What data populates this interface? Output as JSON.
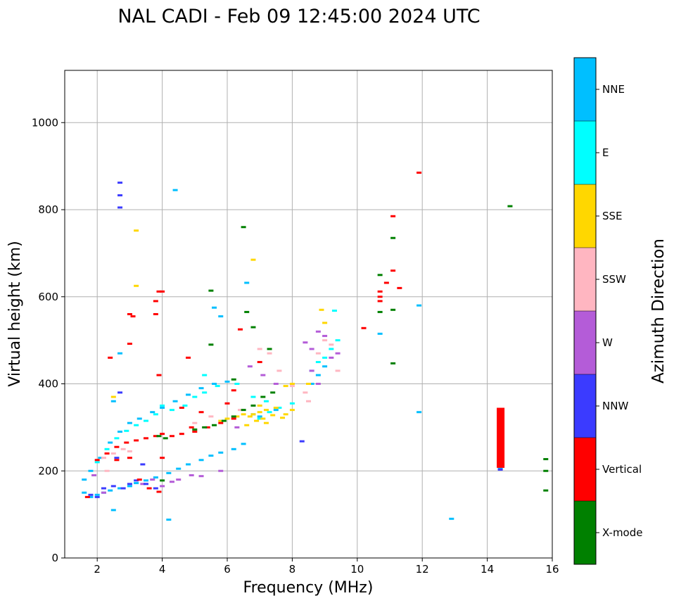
{
  "chart_data": {
    "type": "scatter",
    "title": "NAL CADI - Feb 09 12:45:00 2024 UTC",
    "xlabel": "Frequency (MHz)",
    "ylabel": "Virtual height (km)",
    "xlim": [
      1,
      16
    ],
    "ylim": [
      0,
      1120
    ],
    "xticks": [
      2,
      4,
      6,
      8,
      10,
      12,
      14,
      16
    ],
    "yticks": [
      0,
      200,
      400,
      600,
      800,
      1000
    ],
    "xtick_labels": [
      "2",
      "4",
      "6",
      "8",
      "10",
      "12",
      "14",
      "16"
    ],
    "ytick_labels": [
      "0",
      "200",
      "400",
      "600",
      "800",
      "1000"
    ],
    "grid": true,
    "colorbar": {
      "label": "Azimuth Direction",
      "categories": [
        {
          "name": "X-mode",
          "color": "#008000"
        },
        {
          "name": "Vertical",
          "color": "#ff0000"
        },
        {
          "name": "NNW",
          "color": "#3b3bff"
        },
        {
          "name": "W",
          "color": "#b45cd8"
        },
        {
          "name": "SSW",
          "color": "#ffb6c1"
        },
        {
          "name": "SSE",
          "color": "#ffd700"
        },
        {
          "name": "E",
          "color": "#00ffff"
        },
        {
          "name": "NNE",
          "color": "#00bfff"
        }
      ]
    },
    "series": [
      {
        "name": "NNE",
        "points": [
          [
            1.6,
            150
          ],
          [
            1.8,
            140
          ],
          [
            2.0,
            145
          ],
          [
            2.2,
            150
          ],
          [
            2.4,
            155
          ],
          [
            2.7,
            160
          ],
          [
            3.0,
            165
          ],
          [
            3.2,
            172
          ],
          [
            3.5,
            178
          ],
          [
            3.8,
            185
          ],
          [
            4.2,
            195
          ],
          [
            4.5,
            205
          ],
          [
            4.8,
            215
          ],
          [
            5.2,
            225
          ],
          [
            5.5,
            235
          ],
          [
            5.8,
            242
          ],
          [
            6.2,
            250
          ],
          [
            6.5,
            262
          ],
          [
            1.6,
            180
          ],
          [
            1.8,
            200
          ],
          [
            2.1,
            230
          ],
          [
            2.4,
            265
          ],
          [
            2.7,
            290
          ],
          [
            3.0,
            310
          ],
          [
            3.3,
            320
          ],
          [
            3.7,
            335
          ],
          [
            4.0,
            345
          ],
          [
            4.4,
            360
          ],
          [
            4.8,
            375
          ],
          [
            5.2,
            390
          ],
          [
            5.6,
            400
          ],
          [
            6.0,
            405
          ],
          [
            2.5,
            110
          ],
          [
            2.5,
            360
          ],
          [
            4.2,
            88
          ],
          [
            2.7,
            470
          ],
          [
            5.6,
            575
          ],
          [
            5.8,
            555
          ],
          [
            6.6,
            632
          ],
          [
            4.4,
            845
          ],
          [
            10.7,
            515
          ],
          [
            11.9,
            580
          ],
          [
            11.9,
            335
          ],
          [
            12.9,
            90
          ],
          [
            14.4,
            205
          ],
          [
            9.0,
            440
          ],
          [
            8.8,
            420
          ],
          [
            7.5,
            340
          ],
          [
            7.0,
            325
          ],
          [
            6.8,
            330
          ],
          [
            8.6,
            400
          ]
        ]
      },
      {
        "name": "E",
        "points": [
          [
            2.0,
            220
          ],
          [
            2.3,
            250
          ],
          [
            2.6,
            275
          ],
          [
            2.9,
            292
          ],
          [
            3.2,
            305
          ],
          [
            3.5,
            315
          ],
          [
            3.8,
            330
          ],
          [
            4.0,
            350
          ],
          [
            4.3,
            340
          ],
          [
            4.7,
            350
          ],
          [
            5.0,
            370
          ],
          [
            5.3,
            380
          ],
          [
            5.7,
            395
          ],
          [
            6.3,
            400
          ],
          [
            6.8,
            370
          ],
          [
            7.2,
            360
          ],
          [
            7.6,
            345
          ],
          [
            8.0,
            355
          ],
          [
            8.6,
            430
          ],
          [
            8.8,
            450
          ],
          [
            9.0,
            460
          ],
          [
            9.2,
            480
          ],
          [
            9.4,
            500
          ],
          [
            9.3,
            568
          ],
          [
            5.3,
            420
          ],
          [
            7.0,
            320
          ],
          [
            7.3,
            335
          ]
        ]
      },
      {
        "name": "SSE",
        "points": [
          [
            5.8,
            315
          ],
          [
            6.0,
            320
          ],
          [
            6.3,
            325
          ],
          [
            6.5,
            330
          ],
          [
            6.8,
            330
          ],
          [
            7.0,
            335
          ],
          [
            7.2,
            340
          ],
          [
            7.5,
            345
          ],
          [
            7.8,
            330
          ],
          [
            6.7,
            325
          ],
          [
            6.9,
            315
          ],
          [
            7.1,
            320
          ],
          [
            7.4,
            328
          ],
          [
            7.7,
            322
          ],
          [
            8.0,
            340
          ],
          [
            7.2,
            310
          ],
          [
            6.6,
            305
          ],
          [
            8.9,
            570
          ],
          [
            6.8,
            685
          ],
          [
            3.2,
            752
          ],
          [
            3.2,
            625
          ],
          [
            9.0,
            540
          ],
          [
            8.5,
            400
          ],
          [
            7.0,
            350
          ],
          [
            7.8,
            395
          ],
          [
            8.0,
            400
          ],
          [
            2.5,
            370
          ]
        ]
      },
      {
        "name": "SSW",
        "points": [
          [
            2.2,
            230
          ],
          [
            2.5,
            240
          ],
          [
            2.8,
            250
          ],
          [
            3.0,
            245
          ],
          [
            7.0,
            480
          ],
          [
            7.3,
            470
          ],
          [
            7.6,
            430
          ],
          [
            8.0,
            395
          ],
          [
            8.4,
            380
          ],
          [
            8.5,
            360
          ],
          [
            8.8,
            470
          ],
          [
            9.0,
            500
          ],
          [
            9.2,
            490
          ],
          [
            9.4,
            430
          ],
          [
            5.0,
            310
          ],
          [
            5.5,
            325
          ],
          [
            6.0,
            355
          ],
          [
            6.4,
            340
          ],
          [
            2.3,
            200
          ]
        ]
      },
      {
        "name": "W",
        "points": [
          [
            3.4,
            170
          ],
          [
            3.7,
            180
          ],
          [
            4.0,
            165
          ],
          [
            4.3,
            175
          ],
          [
            4.5,
            180
          ],
          [
            4.9,
            190
          ],
          [
            5.2,
            188
          ],
          [
            5.8,
            200
          ],
          [
            6.3,
            300
          ],
          [
            6.7,
            440
          ],
          [
            7.1,
            420
          ],
          [
            7.5,
            400
          ],
          [
            8.4,
            495
          ],
          [
            8.6,
            480
          ],
          [
            8.8,
            520
          ],
          [
            9.0,
            510
          ],
          [
            9.2,
            460
          ],
          [
            9.4,
            470
          ],
          [
            8.6,
            430
          ],
          [
            8.8,
            400
          ],
          [
            1.9,
            190
          ],
          [
            2.2,
            150
          ]
        ]
      },
      {
        "name": "NNW",
        "points": [
          [
            1.8,
            145
          ],
          [
            2.0,
            140
          ],
          [
            2.2,
            160
          ],
          [
            2.5,
            165
          ],
          [
            2.8,
            160
          ],
          [
            3.0,
            170
          ],
          [
            3.2,
            178
          ],
          [
            3.5,
            170
          ],
          [
            3.8,
            160
          ],
          [
            2.7,
            862
          ],
          [
            2.7,
            833
          ],
          [
            2.7,
            805
          ],
          [
            2.7,
            380
          ],
          [
            8.3,
            268
          ],
          [
            14.4,
            203
          ],
          [
            2.6,
            230
          ],
          [
            3.4,
            215
          ]
        ]
      },
      {
        "name": "Vertical",
        "points": [
          [
            1.7,
            140
          ],
          [
            2.0,
            225
          ],
          [
            2.3,
            240
          ],
          [
            2.6,
            255
          ],
          [
            2.9,
            265
          ],
          [
            3.2,
            270
          ],
          [
            3.5,
            275
          ],
          [
            3.8,
            280
          ],
          [
            4.0,
            285
          ],
          [
            4.3,
            280
          ],
          [
            4.6,
            285
          ],
          [
            5.0,
            290
          ],
          [
            5.4,
            300
          ],
          [
            5.8,
            310
          ],
          [
            6.2,
            320
          ],
          [
            2.6,
            225
          ],
          [
            3.0,
            230
          ],
          [
            3.3,
            180
          ],
          [
            3.6,
            160
          ],
          [
            3.9,
            152
          ],
          [
            4.0,
            230
          ],
          [
            2.4,
            460
          ],
          [
            3.0,
            560
          ],
          [
            3.1,
            555
          ],
          [
            3.0,
            492
          ],
          [
            3.8,
            590
          ],
          [
            3.8,
            560
          ],
          [
            3.9,
            612
          ],
          [
            4.0,
            612
          ],
          [
            3.9,
            420
          ],
          [
            4.8,
            460
          ],
          [
            4.6,
            345
          ],
          [
            4.9,
            300
          ],
          [
            5.2,
            335
          ],
          [
            6.0,
            355
          ],
          [
            6.4,
            525
          ],
          [
            7.0,
            450
          ],
          [
            10.7,
            600
          ],
          [
            10.7,
            590
          ],
          [
            10.7,
            612
          ],
          [
            10.9,
            632
          ],
          [
            11.1,
            785
          ],
          [
            11.1,
            660
          ],
          [
            11.3,
            620
          ],
          [
            11.9,
            885
          ],
          [
            10.2,
            528
          ],
          [
            6.2,
            385
          ]
        ]
      },
      {
        "name": "X-mode",
        "points": [
          [
            5.0,
            295
          ],
          [
            5.3,
            300
          ],
          [
            5.6,
            305
          ],
          [
            5.9,
            315
          ],
          [
            6.2,
            325
          ],
          [
            6.5,
            340
          ],
          [
            6.8,
            350
          ],
          [
            7.1,
            370
          ],
          [
            7.4,
            380
          ],
          [
            3.9,
            280
          ],
          [
            4.1,
            275
          ],
          [
            6.5,
            760
          ],
          [
            6.6,
            565
          ],
          [
            5.5,
            614
          ],
          [
            5.5,
            490
          ],
          [
            6.2,
            410
          ],
          [
            6.8,
            530
          ],
          [
            7.3,
            480
          ],
          [
            10.7,
            650
          ],
          [
            10.7,
            565
          ],
          [
            11.1,
            735
          ],
          [
            11.1,
            570
          ],
          [
            11.1,
            447
          ],
          [
            14.4,
            335
          ],
          [
            14.4,
            302
          ],
          [
            14.7,
            808
          ],
          [
            15.8,
            227
          ],
          [
            15.8,
            200
          ],
          [
            15.8,
            155
          ],
          [
            4.0,
            178
          ]
        ]
      }
    ],
    "bars": [
      {
        "name": "Vertical",
        "x": 14.4,
        "y0": 207,
        "y1": 345
      }
    ]
  }
}
